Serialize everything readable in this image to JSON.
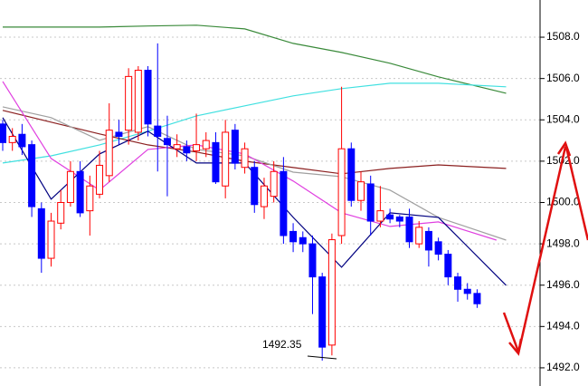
{
  "chart_data": {
    "type": "candlestick",
    "up_color": "#ff0000",
    "down_color": "#0000ff",
    "xlim": [
      -0.28,
      55.5
    ],
    "ylim": [
      1491.12,
      1509.8
    ],
    "yticks": [
      {
        "value": 1492,
        "label": "1492.0"
      },
      {
        "value": 1494,
        "label": "1494.0"
      },
      {
        "value": 1496,
        "label": "1496.0"
      },
      {
        "value": 1498,
        "label": "1498.0"
      },
      {
        "value": 1500,
        "label": "1500.0"
      },
      {
        "value": 1502,
        "label": "1502.0"
      },
      {
        "value": 1504,
        "label": "1504.0"
      },
      {
        "value": 1506,
        "label": "1506.0"
      },
      {
        "value": 1508,
        "label": "1508.0"
      }
    ],
    "grid": true,
    "candles": {
      "open": [
        1503.8,
        1502.9,
        1503.3,
        1502.8,
        1499.7,
        1497.3,
        1499.0,
        1500.0,
        1501.5,
        1499.6,
        1500.4,
        1501.3,
        1503.4,
        1503.5,
        1503.4,
        1506.4,
        1503.7,
        1503.1,
        1502.6,
        1502.7,
        1502.5,
        1502.6,
        1502.9,
        1500.8,
        1503.5,
        1501.7,
        1501.7,
        1499.8,
        1500.3,
        1501.5,
        1498.6,
        1498.3,
        1498.0,
        1496.4,
        1493.1,
        1498.4,
        1502.6,
        1500.1,
        1500.9,
        1499.1,
        1499.4,
        1499.3,
        1499.3,
        1498.0,
        1498.6,
        1498.1,
        1497.5,
        1496.4,
        1495.8,
        1495.6
      ],
      "high": [
        1504.0,
        1503.6,
        1503.8,
        1503.0,
        1500.0,
        1499.5,
        1500.6,
        1502.0,
        1502.0,
        1501.3,
        1502.5,
        1504.8,
        1504.0,
        1506.5,
        1506.6,
        1506.6,
        1507.7,
        1504.2,
        1503.3,
        1503.0,
        1504.3,
        1503.4,
        1503.4,
        1504.0,
        1503.8,
        1502.9,
        1502.0,
        1501.2,
        1502.0,
        1502.2,
        1499.0,
        1498.6,
        1498.4,
        1496.6,
        1498.5,
        1505.6,
        1502.9,
        1501.5,
        1501.3,
        1500.8,
        1499.7,
        1499.4,
        1499.7,
        1499.1,
        1498.8,
        1498.3,
        1497.7,
        1496.6,
        1496.1,
        1495.8
      ],
      "low": [
        1502.5,
        1502.5,
        1502.3,
        1499.3,
        1496.6,
        1496.9,
        1498.7,
        1499.8,
        1499.3,
        1498.4,
        1500.2,
        1501.0,
        1502.8,
        1502.8,
        1503.0,
        1503.2,
        1501.5,
        1500.3,
        1502.2,
        1502.0,
        1502.0,
        1502.2,
        1500.9,
        1500.2,
        1501.6,
        1501.4,
        1499.5,
        1499.2,
        1500.0,
        1498.0,
        1497.6,
        1497.6,
        1494.6,
        1492.35,
        1492.6,
        1498.0,
        1499.8,
        1499.6,
        1498.4,
        1498.8,
        1499.0,
        1498.8,
        1497.8,
        1497.8,
        1496.9,
        1497.2,
        1496.0,
        1495.2,
        1495.3,
        1494.9
      ],
      "close": [
        1502.9,
        1503.2,
        1502.7,
        1499.8,
        1497.3,
        1499.1,
        1500.0,
        1501.5,
        1499.5,
        1500.8,
        1501.8,
        1503.5,
        1503.2,
        1506.1,
        1506.4,
        1503.8,
        1503.2,
        1502.8,
        1502.8,
        1502.4,
        1502.8,
        1503.0,
        1501.0,
        1503.4,
        1501.9,
        1502.6,
        1499.9,
        1500.8,
        1501.5,
        1498.4,
        1498.1,
        1498.0,
        1496.4,
        1493.0,
        1498.2,
        1502.6,
        1500.1,
        1501.0,
        1499.1,
        1499.6,
        1499.2,
        1499.1,
        1498.1,
        1498.8,
        1497.7,
        1497.5,
        1496.4,
        1495.8,
        1495.6,
        1495.1
      ]
    },
    "lines": [
      {
        "color": "#3a8a3a",
        "x": [
          0,
          5,
          10,
          15,
          20,
          25,
          30,
          35,
          40,
          45,
          52
        ],
        "values": [
          1508.49,
          1508.49,
          1508.49,
          1508.54,
          1508.58,
          1508.4,
          1507.7,
          1507.26,
          1506.74,
          1506.08,
          1505.29
        ]
      },
      {
        "color": "#40e0e0",
        "x": [
          0,
          5,
          10,
          15,
          20,
          25,
          30,
          35,
          40,
          45,
          52
        ],
        "values": [
          1501.91,
          1502.26,
          1502.79,
          1503.45,
          1504.19,
          1504.68,
          1505.16,
          1505.51,
          1505.77,
          1505.77,
          1505.6
        ]
      },
      {
        "color": "#8b2020",
        "x": [
          0,
          5,
          10,
          15,
          20,
          25,
          30,
          35,
          40,
          45,
          52
        ],
        "values": [
          1504.46,
          1503.89,
          1503.32,
          1502.79,
          1502.44,
          1502.0,
          1501.69,
          1501.39,
          1501.65,
          1501.82,
          1501.65
        ]
      },
      {
        "color": "#a0a0a0",
        "x": [
          0,
          5,
          10,
          15,
          20,
          25,
          30,
          35,
          40,
          45,
          52
        ],
        "values": [
          1504.63,
          1504.11,
          1503.01,
          1503.67,
          1502.57,
          1502.26,
          1501.47,
          1501.25,
          1500.6,
          1499.28,
          1498.18
        ]
      },
      {
        "color": "#e040e0",
        "x": [
          0,
          5,
          10,
          15,
          20,
          25,
          30,
          35,
          40,
          45,
          51
        ],
        "values": [
          1505.86,
          1502.13,
          1500.6,
          1502.57,
          1502.79,
          1502.35,
          1501.04,
          1499.5,
          1498.84,
          1499.06,
          1498.18
        ]
      },
      {
        "color": "#000080",
        "x": [
          0,
          5,
          10,
          15,
          20,
          25,
          30,
          35,
          40,
          45,
          52
        ],
        "values": [
          1504.11,
          1500.16,
          1502.35,
          1503.45,
          1501.91,
          1501.91,
          1499.28,
          1496.87,
          1499.5,
          1499.28,
          1495.99
        ]
      }
    ],
    "annotation": {
      "text": "1492.35"
    }
  }
}
